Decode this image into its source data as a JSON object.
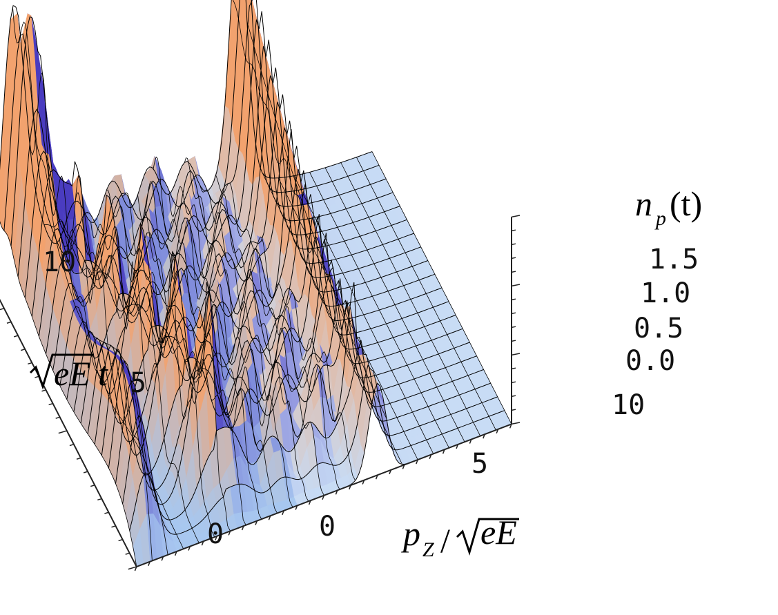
{
  "chart_data": {
    "type": "surface3d",
    "title": "",
    "zlabel": {
      "main": "n",
      "sub": "p",
      "tail": "(t)"
    },
    "ylabel": {
      "root": "eE",
      "tail": "t"
    },
    "xlabel": {
      "main": "p",
      "sub": "Z",
      "slash": "/",
      "root": "eE"
    },
    "x_axis": {
      "range": [
        -4,
        10
      ],
      "ticks": [
        "0",
        "5",
        "10"
      ],
      "tick_values": [
        0,
        5,
        10
      ]
    },
    "y_axis": {
      "range": [
        0,
        10
      ],
      "ticks": [
        "0",
        "5",
        "10"
      ],
      "tick_values": [
        0,
        5,
        10
      ]
    },
    "z_axis": {
      "range": [
        0,
        1.5
      ],
      "ticks": [
        "0.0",
        "0.5",
        "1.0",
        "1.5"
      ],
      "tick_values": [
        0,
        0.5,
        1.0,
        1.5
      ]
    },
    "grid": true,
    "surface": {
      "description_free_params": true,
      "front_ridge_amplitude": 1.5,
      "front_ridge_x": -3.4,
      "ridge_amplitude": 1.1,
      "ridge_start": {
        "x": -0.4,
        "t": 0.5
      },
      "ridge_end": {
        "x": -3.0,
        "t": 9.3
      },
      "rear_spike_x": 5.0,
      "rear_spike_amplitude": 1.9,
      "oscillation_period": 1.5
    },
    "colors": {
      "flat": "#a8c8f0",
      "purple": "#4a3cc0",
      "orange": "#f2a26e",
      "mesh": "#000000"
    }
  }
}
